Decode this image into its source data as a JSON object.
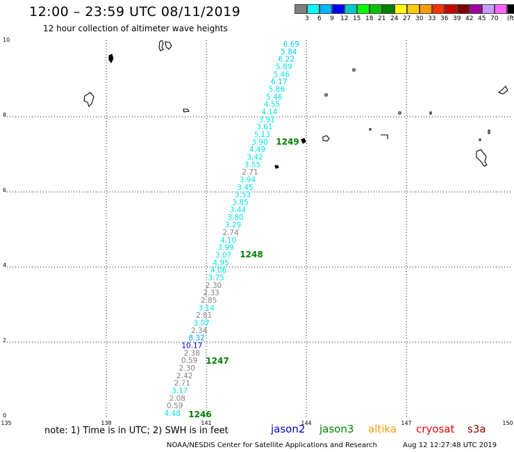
{
  "header": {
    "title": "12:00 – 23:59 UTC 08/11/2019",
    "subtitle": "12 hour collection of altimeter wave heights"
  },
  "legend": {
    "colors": [
      "#808080",
      "#00ffff",
      "#00b4ff",
      "#0000ff",
      "#00c8c8",
      "#00ff00",
      "#00c000",
      "#008000",
      "#ffff00",
      "#ffcc00",
      "#ff9900",
      "#ff3300",
      "#c80000",
      "#800000",
      "#a000a0",
      "#cc99ff",
      "#ff66ff",
      "#000000"
    ],
    "labels": [
      "3",
      "6",
      "9",
      "12",
      "15",
      "18",
      "21",
      "24",
      "27",
      "30",
      "33",
      "36",
      "39",
      "42",
      "45",
      "70",
      "(ft)"
    ]
  },
  "map": {
    "x_ticks": [
      "135",
      "138",
      "141",
      "144",
      "147",
      "150"
    ],
    "y_ticks": [
      "0",
      "2",
      "4",
      "6",
      "8",
      "10"
    ],
    "track_values": [
      {
        "v": "6.69",
        "c": "#00ccff"
      },
      {
        "v": "5.84",
        "c": "#00ccff"
      },
      {
        "v": "6.22",
        "c": "#00ccff"
      },
      {
        "v": "5.89",
        "c": "#00e5e5"
      },
      {
        "v": "5.46",
        "c": "#00e5e5"
      },
      {
        "v": "6.17",
        "c": "#00ccff"
      },
      {
        "v": "5.86",
        "c": "#00e5e5"
      },
      {
        "v": "5.46",
        "c": "#00e5e5"
      },
      {
        "v": "4.55",
        "c": "#00e5e5"
      },
      {
        "v": "4.14",
        "c": "#00e5e5"
      },
      {
        "v": "3.91",
        "c": "#00e5e5"
      },
      {
        "v": "3.61",
        "c": "#00e5e5"
      },
      {
        "v": "5.13",
        "c": "#00e5e5"
      },
      {
        "v": "3.90",
        "c": "#00e5e5"
      },
      {
        "v": "4.49",
        "c": "#00e5e5"
      },
      {
        "v": "3.42",
        "c": "#00e5e5"
      },
      {
        "v": "3.55",
        "c": "#00e5e5"
      },
      {
        "v": "2.71",
        "c": "#808080"
      },
      {
        "v": "3.94",
        "c": "#00e5e5"
      },
      {
        "v": "3.45",
        "c": "#00e5e5"
      },
      {
        "v": "3.53",
        "c": "#00e5e5"
      },
      {
        "v": "3.85",
        "c": "#00e5e5"
      },
      {
        "v": "3.44",
        "c": "#00e5e5"
      },
      {
        "v": "3.80",
        "c": "#00e5e5"
      },
      {
        "v": "3.29",
        "c": "#00e5e5"
      },
      {
        "v": "2.74",
        "c": "#808080"
      },
      {
        "v": "4.10",
        "c": "#00e5e5"
      },
      {
        "v": "3.99",
        "c": "#00e5e5"
      },
      {
        "v": "3.07",
        "c": "#00e5e5"
      },
      {
        "v": "4.95",
        "c": "#00e5e5"
      },
      {
        "v": "4.06",
        "c": "#00e5e5"
      },
      {
        "v": "3.75",
        "c": "#00e5e5"
      },
      {
        "v": "2.30",
        "c": "#808080"
      },
      {
        "v": "2.33",
        "c": "#808080"
      },
      {
        "v": "2.85",
        "c": "#808080"
      },
      {
        "v": "3.14",
        "c": "#00e5e5"
      },
      {
        "v": "2.81",
        "c": "#808080"
      },
      {
        "v": "3.07",
        "c": "#00e5e5"
      },
      {
        "v": "2.34",
        "c": "#808080"
      },
      {
        "v": "8.32",
        "c": "#00a0ff"
      },
      {
        "v": "10.17",
        "c": "#0000cc"
      },
      {
        "v": "2.38",
        "c": "#808080"
      },
      {
        "v": "0.59",
        "c": "#808080"
      },
      {
        "v": "2.30",
        "c": "#808080"
      },
      {
        "v": "2.42",
        "c": "#808080"
      },
      {
        "v": "2.71",
        "c": "#808080"
      },
      {
        "v": "3.17",
        "c": "#00e5e5"
      },
      {
        "v": "2.08",
        "c": "#808080"
      },
      {
        "v": "0.59",
        "c": "#808080"
      },
      {
        "v": "4.48",
        "c": "#00e5e5"
      }
    ],
    "pass_labels": [
      "1249",
      "1248",
      "1247",
      "1246"
    ],
    "pass_color": "#008000"
  },
  "footer": {
    "note": "note: 1) Time is in UTC; 2) SWH is in feet",
    "satellites": [
      {
        "name": "jason2",
        "color": "#0000cc"
      },
      {
        "name": "jason3",
        "color": "#008000"
      },
      {
        "name": "altika",
        "color": "#ff9900"
      },
      {
        "name": "cryosat",
        "color": "#dd0000"
      },
      {
        "name": "s3a",
        "color": "#990000"
      }
    ],
    "credit": "NOAA/NESDIS Center for Satellite Applications and Research",
    "timestamp": "Aug 12 12:27:48 UTC 2019"
  }
}
